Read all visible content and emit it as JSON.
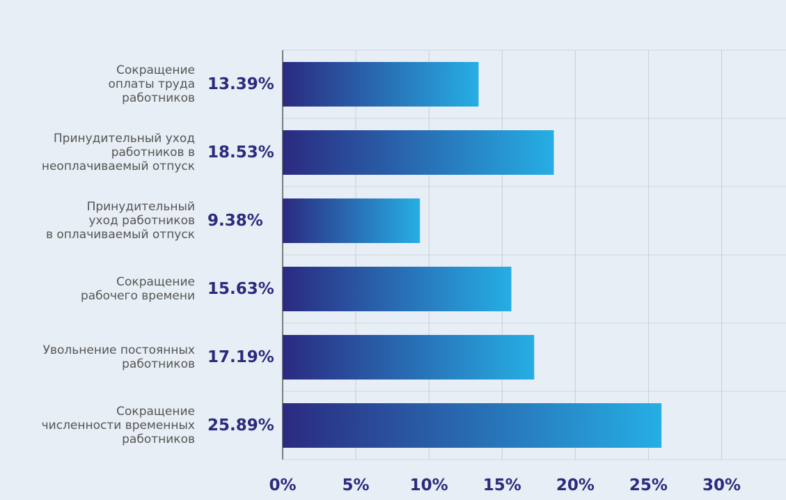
{
  "chart_data": {
    "type": "bar",
    "orientation": "horizontal",
    "categories": [
      "Сокращение\nоплаты труда\nработников",
      "Принудительный уход\nработников в\nнеоплачиваемый отпуск",
      "Принудительный\nуход работников\nв оплачиваемый отпуск",
      "Сокращение\nрабочего времени",
      "Увольнение постоянных\nработников",
      "Сокращение\nчисленности временных\nработников"
    ],
    "values": [
      13.39,
      18.53,
      9.38,
      15.63,
      17.19,
      25.89
    ],
    "value_labels": [
      "13.39%",
      "18.53%",
      "9.38%",
      "15.63%",
      "17.19%",
      "25.89%"
    ],
    "color": [
      "#2b2a80",
      "#26aee4"
    ],
    "xlim": [
      0,
      34.4
    ],
    "xticks": [
      {
        "value": 0,
        "label": "0%"
      },
      {
        "value": 5,
        "label": "5%"
      },
      {
        "value": 10,
        "label": "10%"
      },
      {
        "value": 15,
        "label": "15%"
      },
      {
        "value": 20,
        "label": "20%"
      },
      {
        "value": 25,
        "label": "25%"
      },
      {
        "value": 30,
        "label": "30%"
      }
    ],
    "grid": true
  }
}
